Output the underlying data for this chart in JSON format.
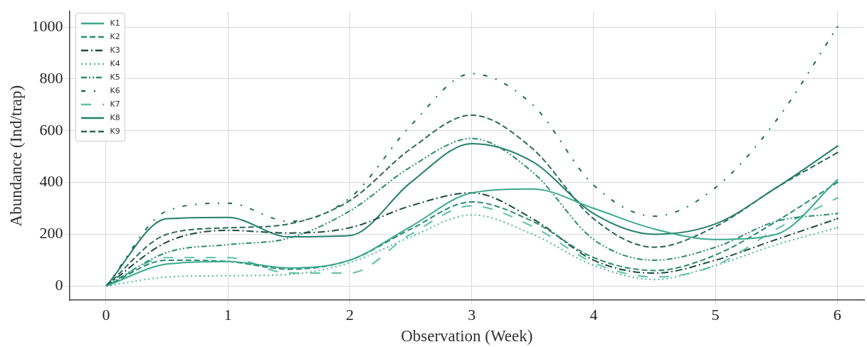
{
  "chart_data": {
    "type": "line",
    "xlabel": "Observation (Week)",
    "ylabel": "Abundance (Ind/trap)",
    "x": [
      0,
      0.5,
      1,
      1.5,
      2,
      2.5,
      3,
      3.5,
      4,
      4.5,
      5,
      5.5,
      6
    ],
    "xlim": [
      -0.3,
      6.22
    ],
    "xticks": [
      0,
      1,
      2,
      3,
      4,
      5,
      6
    ],
    "ylim": [
      -54,
      1060
    ],
    "yticks": [
      0,
      200,
      400,
      600,
      800,
      1000
    ],
    "grid": true,
    "legend": "top left",
    "marker": "none",
    "series": [
      {
        "name": "K1",
        "color": "#3aaa8c",
        "line_style": "solid",
        "values": [
          0,
          85,
          95,
          70,
          100,
          230,
          360,
          375,
          300,
          220,
          180,
          200,
          410
        ]
      },
      {
        "name": "K2",
        "color": "#2a8c70",
        "line_style": "dashed",
        "values": [
          0,
          100,
          95,
          65,
          100,
          220,
          325,
          250,
          110,
          60,
          120,
          250,
          400
        ]
      },
      {
        "name": "K3",
        "color": "#1d4d3e",
        "line_style": "dashdot",
        "values": [
          0,
          170,
          215,
          205,
          225,
          310,
          360,
          260,
          100,
          50,
          100,
          180,
          260
        ]
      },
      {
        "name": "K4",
        "color": "#4cb89a",
        "line_style": "dotted",
        "values": [
          0,
          35,
          40,
          45,
          90,
          190,
          275,
          200,
          80,
          25,
          80,
          160,
          225
        ]
      },
      {
        "name": "K5",
        "color": "#2a8c70",
        "line_style": "dashdotdot",
        "values": [
          0,
          130,
          160,
          185,
          290,
          460,
          570,
          440,
          180,
          100,
          150,
          250,
          280
        ]
      },
      {
        "name": "K6",
        "color": "#1f6b55",
        "line_style": "sparse",
        "values": [
          0,
          290,
          320,
          250,
          340,
          620,
          820,
          700,
          390,
          270,
          380,
          640,
          1000
        ]
      },
      {
        "name": "K7",
        "color": "#5cc2a4",
        "line_style": "longdash",
        "values": [
          0,
          110,
          110,
          50,
          50,
          200,
          310,
          230,
          90,
          35,
          80,
          220,
          340
        ]
      },
      {
        "name": "K8",
        "color": "#24806a",
        "line_style": "solid",
        "values": [
          0,
          260,
          265,
          190,
          195,
          400,
          550,
          480,
          280,
          200,
          240,
          380,
          540
        ]
      },
      {
        "name": "K9",
        "color": "#2a6b58",
        "line_style": "dashed",
        "values": [
          0,
          200,
          225,
          240,
          330,
          530,
          660,
          530,
          260,
          150,
          230,
          380,
          515
        ]
      }
    ]
  }
}
